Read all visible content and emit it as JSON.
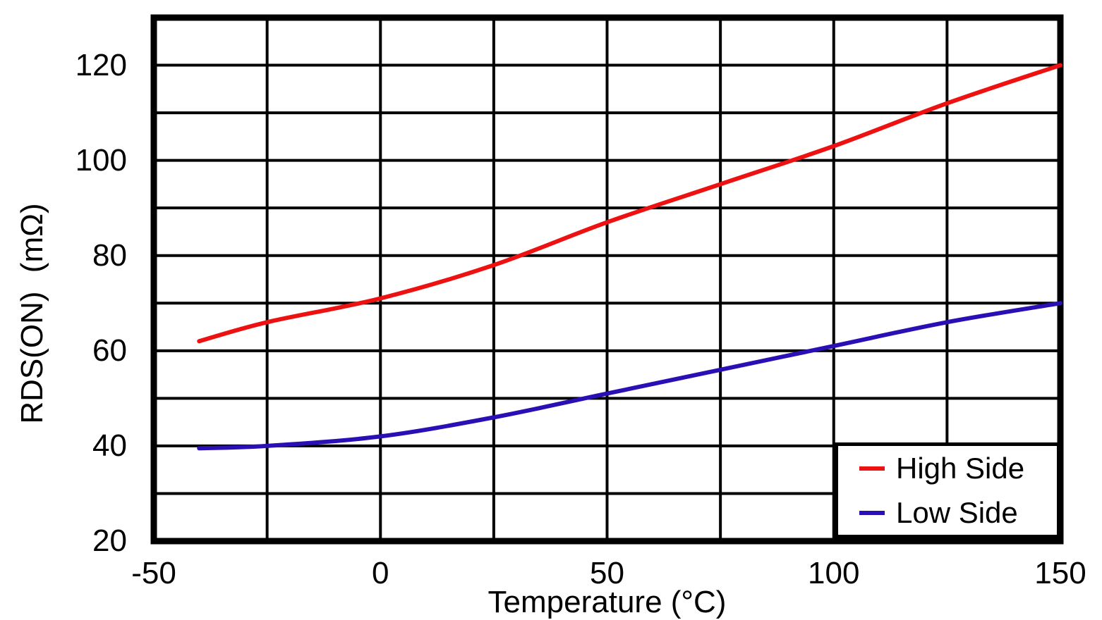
{
  "figure": {
    "background_color": "#ffffff",
    "grid_color": "#000000",
    "border_color": "#000000"
  },
  "chart_data": {
    "type": "line",
    "title": "",
    "xlabel": "Temperature (°C)",
    "ylabel": "RDS(ON) (mΩ)",
    "xlim": [
      -50,
      150
    ],
    "ylim": [
      20,
      130
    ],
    "x_tick_labels": [
      -50,
      0,
      50,
      100,
      150
    ],
    "x_gridline_step": 25,
    "y_tick_labels": [
      20,
      40,
      60,
      80,
      100,
      120
    ],
    "y_gridline_step": 10,
    "grid": "on",
    "legend_position": "bottom-right",
    "x": [
      -40,
      -25,
      0,
      25,
      50,
      75,
      100,
      125,
      150
    ],
    "series": [
      {
        "name": "High Side",
        "color": "#ee1111",
        "values": [
          62,
          66,
          71,
          78,
          87,
          95,
          103,
          112,
          120
        ]
      },
      {
        "name": "Low Side",
        "color": "#2b0fb4",
        "values": [
          39.5,
          40,
          42,
          46,
          51,
          56,
          61,
          66,
          70
        ]
      }
    ]
  }
}
